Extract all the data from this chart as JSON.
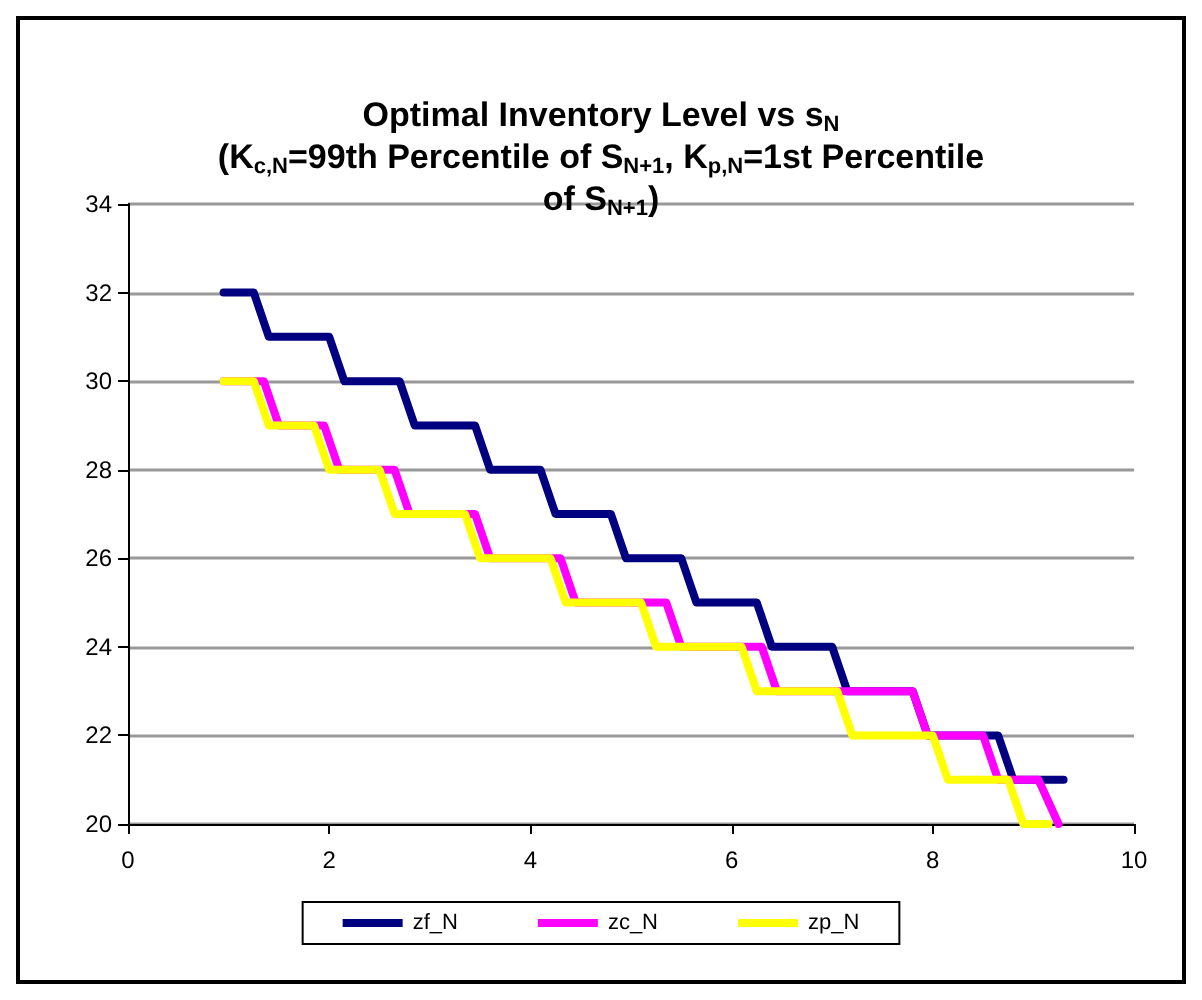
{
  "chart_data": {
    "type": "line",
    "title": "Optimal Inventory Level vs s$_{N}$\n(K$_{c,N}$=99th Percentile of S$_{N+1}$, K$_{p,N}$=1st Percentile\nof S$_{N+1}$)",
    "xlim": [
      0,
      10
    ],
    "xticks": [
      0,
      2,
      4,
      6,
      8,
      10
    ],
    "ylim": [
      20,
      34
    ],
    "yticks": [
      20,
      22,
      24,
      26,
      28,
      30,
      32,
      34
    ],
    "grid": "y",
    "legend": "bottom",
    "marker": "none",
    "line_style": "solid",
    "series": [
      {
        "name": "zf_N",
        "color": "#000080",
        "x": [
          0.95,
          1.25,
          1.4,
          2.0,
          2.15,
          2.7,
          2.85,
          3.45,
          3.6,
          4.1,
          4.25,
          4.8,
          4.95,
          5.5,
          5.65,
          6.25,
          6.4,
          7.0,
          7.15,
          7.8,
          7.95,
          8.65,
          8.8,
          9.3
        ],
        "values": [
          32,
          32,
          31,
          31,
          30,
          30,
          29,
          29,
          28,
          28,
          27,
          27,
          26,
          26,
          25,
          25,
          24,
          24,
          23,
          23,
          22,
          22,
          21,
          21
        ]
      },
      {
        "name": "zc_N",
        "color": "#ff00ff",
        "x": [
          0.95,
          1.35,
          1.5,
          1.95,
          2.1,
          2.65,
          2.8,
          3.45,
          3.6,
          4.3,
          4.45,
          5.35,
          5.5,
          6.3,
          6.45,
          7.8,
          7.95,
          8.5,
          8.65,
          9.05,
          9.25
        ],
        "values": [
          30,
          30,
          29,
          29,
          28,
          28,
          27,
          27,
          26,
          26,
          25,
          25,
          24,
          24,
          23,
          23,
          22,
          22,
          21,
          21,
          20
        ]
      },
      {
        "name": "zp_N",
        "color": "#ffff00",
        "x": [
          0.95,
          1.25,
          1.4,
          1.85,
          2.0,
          2.5,
          2.65,
          3.35,
          3.5,
          4.2,
          4.35,
          5.1,
          5.25,
          6.1,
          6.25,
          7.05,
          7.2,
          8.0,
          8.15,
          8.75,
          8.9,
          9.15
        ],
        "values": [
          30,
          30,
          29,
          29,
          28,
          28,
          27,
          27,
          26,
          26,
          25,
          25,
          24,
          24,
          23,
          23,
          22,
          22,
          21,
          21,
          20,
          20
        ]
      }
    ]
  }
}
